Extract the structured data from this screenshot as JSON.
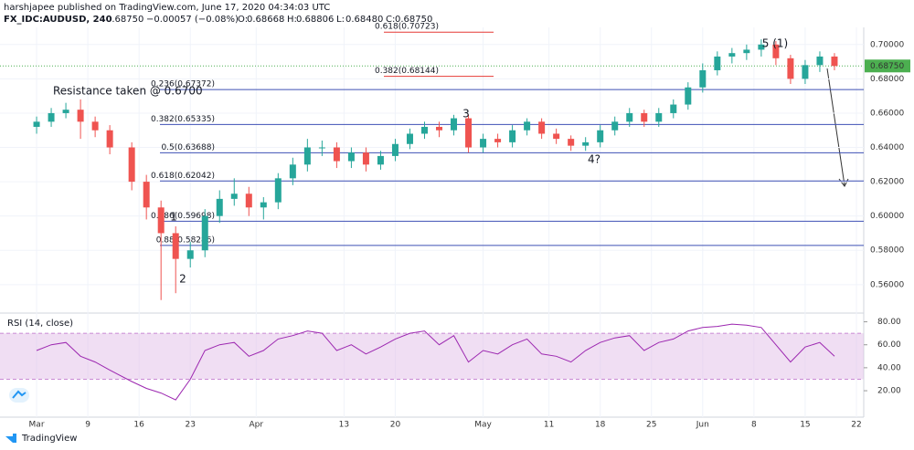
{
  "header": {
    "publisher": "harshjapee published on TradingView.com, June 17, 2020 04:34:03 UTC",
    "symbol": "FX_IDC:AUDUSD, 240",
    "last": "0.68750",
    "change": "−0.00057 (−0.08%)",
    "ohlc": [
      "O:",
      "0.68668",
      "H:",
      "0.68806",
      "L:",
      "0.68480",
      "C:",
      "0.68750"
    ]
  },
  "chart_data": [
    {
      "type": "candlestick",
      "name": "AUDUSD",
      "x": [
        1,
        3,
        5,
        7,
        9,
        11,
        14,
        16,
        18,
        20,
        22,
        24,
        26,
        28,
        30,
        32,
        34,
        36,
        38,
        40,
        42,
        44,
        46,
        48,
        50,
        52,
        54,
        56,
        58,
        60,
        62,
        64,
        66,
        68,
        70,
        72,
        74,
        76,
        78,
        80,
        82,
        84,
        86,
        88,
        90,
        92,
        94,
        96,
        98,
        100,
        102,
        104,
        106,
        108,
        110
      ],
      "open": [
        0.652,
        0.655,
        0.66,
        0.662,
        0.655,
        0.65,
        0.64,
        0.62,
        0.605,
        0.59,
        0.575,
        0.58,
        0.6,
        0.61,
        0.613,
        0.605,
        0.608,
        0.622,
        0.63,
        0.64,
        0.64,
        0.632,
        0.637,
        0.63,
        0.635,
        0.642,
        0.648,
        0.652,
        0.65,
        0.657,
        0.64,
        0.645,
        0.643,
        0.65,
        0.655,
        0.648,
        0.645,
        0.641,
        0.643,
        0.65,
        0.655,
        0.66,
        0.655,
        0.66,
        0.665,
        0.675,
        0.685,
        0.693,
        0.695,
        0.697,
        0.7,
        0.692,
        0.68,
        0.688,
        0.693
      ],
      "high": [
        0.658,
        0.663,
        0.666,
        0.668,
        0.658,
        0.653,
        0.643,
        0.624,
        0.609,
        0.594,
        0.585,
        0.604,
        0.615,
        0.622,
        0.617,
        0.611,
        0.625,
        0.634,
        0.645,
        0.644,
        0.643,
        0.64,
        0.64,
        0.638,
        0.645,
        0.651,
        0.655,
        0.655,
        0.659,
        0.659,
        0.648,
        0.648,
        0.653,
        0.657,
        0.657,
        0.651,
        0.647,
        0.646,
        0.653,
        0.658,
        0.663,
        0.662,
        0.663,
        0.668,
        0.678,
        0.689,
        0.696,
        0.698,
        0.7,
        0.703,
        0.702,
        0.694,
        0.691,
        0.696,
        0.695
      ],
      "low": [
        0.648,
        0.652,
        0.657,
        0.645,
        0.646,
        0.636,
        0.615,
        0.598,
        0.551,
        0.555,
        0.57,
        0.576,
        0.596,
        0.606,
        0.6,
        0.598,
        0.604,
        0.618,
        0.626,
        0.635,
        0.628,
        0.628,
        0.626,
        0.627,
        0.632,
        0.639,
        0.645,
        0.646,
        0.647,
        0.637,
        0.637,
        0.64,
        0.64,
        0.647,
        0.645,
        0.642,
        0.638,
        0.638,
        0.64,
        0.647,
        0.652,
        0.652,
        0.652,
        0.657,
        0.662,
        0.672,
        0.682,
        0.689,
        0.691,
        0.693,
        0.688,
        0.677,
        0.677,
        0.684,
        0.685
      ],
      "close": [
        0.655,
        0.66,
        0.662,
        0.655,
        0.65,
        0.64,
        0.62,
        0.605,
        0.59,
        0.575,
        0.58,
        0.6,
        0.61,
        0.613,
        0.605,
        0.608,
        0.622,
        0.63,
        0.64,
        0.64,
        0.632,
        0.637,
        0.63,
        0.635,
        0.642,
        0.648,
        0.652,
        0.65,
        0.657,
        0.64,
        0.645,
        0.643,
        0.65,
        0.655,
        0.648,
        0.645,
        0.641,
        0.643,
        0.65,
        0.655,
        0.66,
        0.655,
        0.66,
        0.665,
        0.675,
        0.685,
        0.693,
        0.695,
        0.697,
        0.7,
        0.692,
        0.68,
        0.688,
        0.693,
        0.6875
      ],
      "up_color": "#26a69a",
      "down_color": "#ef5350",
      "xlim": [
        -4,
        114
      ],
      "xticks": [
        {
          "value": 1,
          "label": "Mar"
        },
        {
          "value": 8,
          "label": "9"
        },
        {
          "value": 15,
          "label": "16"
        },
        {
          "value": 22,
          "label": "23"
        },
        {
          "value": 31,
          "label": "Apr"
        },
        {
          "value": 43,
          "label": "13"
        },
        {
          "value": 50,
          "label": "20"
        },
        {
          "value": 62,
          "label": "May"
        },
        {
          "value": 71,
          "label": "11"
        },
        {
          "value": 78,
          "label": "18"
        },
        {
          "value": 85,
          "label": "25"
        },
        {
          "value": 92,
          "label": "Jun"
        },
        {
          "value": 99,
          "label": "8"
        },
        {
          "value": 106,
          "label": "15"
        },
        {
          "value": 113,
          "label": "22"
        }
      ],
      "ylim": [
        0.545,
        0.71
      ],
      "yticks": [
        {
          "value": 0.56,
          "label": "0.56000"
        },
        {
          "value": 0.58,
          "label": "0.58000"
        },
        {
          "value": 0.6,
          "label": "0.60000"
        },
        {
          "value": 0.62,
          "label": "0.62000"
        },
        {
          "value": 0.64,
          "label": "0.64000"
        },
        {
          "value": 0.66,
          "label": "0.66000"
        },
        {
          "value": 0.68,
          "label": "0.68000"
        },
        {
          "value": 0.7,
          "label": "0.70000"
        }
      ],
      "last_price": {
        "value": 0.6875,
        "label": "0.68750",
        "color": "#4caf50"
      },
      "fib_levels": [
        {
          "value": 0.70723,
          "label": "0.618(0.70723)",
          "color": "#e53935",
          "short": true
        },
        {
          "value": 0.68144,
          "label": "0.382(0.68144)",
          "color": "#e53935",
          "short": true
        },
        {
          "value": 0.67372,
          "label": "0.236(0.67372)",
          "color": "#3f51b5",
          "short": false
        },
        {
          "value": 0.65335,
          "label": "0.382(0.65335)",
          "color": "#3f51b5",
          "short": false
        },
        {
          "value": 0.63688,
          "label": "0.5(0.63688)",
          "color": "#3f51b5",
          "short": false
        },
        {
          "value": 0.62042,
          "label": "0.618(0.62042)",
          "color": "#3f51b5",
          "short": false
        },
        {
          "value": 0.59698,
          "label": "0.786(0.59698)",
          "color": "#3f51b5",
          "short": false
        },
        {
          "value": 0.58286,
          "label": "0.88(0.58286)",
          "color": "#3f51b5",
          "short": false
        }
      ],
      "annotations": [
        "Resistance taken @ 0.6700",
        "1",
        "2",
        "3",
        "4?",
        "5 (1)"
      ],
      "grid": true
    },
    {
      "type": "line",
      "title": "RSI (14, close)",
      "x": [
        1,
        3,
        5,
        7,
        9,
        11,
        14,
        16,
        18,
        20,
        22,
        24,
        26,
        28,
        30,
        32,
        34,
        36,
        38,
        40,
        42,
        44,
        46,
        48,
        50,
        52,
        54,
        56,
        58,
        60,
        62,
        64,
        66,
        68,
        70,
        72,
        74,
        76,
        78,
        80,
        82,
        84,
        86,
        88,
        90,
        92,
        94,
        96,
        98,
        100,
        102,
        104,
        106,
        108,
        110
      ],
      "series": [
        {
          "name": "RSI",
          "color": "#9c27b0",
          "values": [
            55,
            60,
            62,
            50,
            45,
            38,
            28,
            22,
            18,
            12,
            30,
            55,
            60,
            62,
            50,
            55,
            65,
            68,
            72,
            70,
            55,
            60,
            52,
            58,
            65,
            70,
            72,
            60,
            68,
            45,
            55,
            52,
            60,
            65,
            52,
            50,
            45,
            55,
            62,
            66,
            68,
            55,
            62,
            65,
            72,
            75,
            76,
            78,
            77,
            75,
            60,
            45,
            58,
            62,
            50
          ]
        }
      ],
      "band": [
        30,
        70
      ],
      "band_color": "#e1bee7",
      "xlim": [
        -4,
        114
      ],
      "ylim": [
        -3,
        86
      ],
      "yticks": [
        {
          "value": 20,
          "label": "20.00"
        },
        {
          "value": 40,
          "label": "40.00"
        },
        {
          "value": 60,
          "label": "60.00"
        },
        {
          "value": 80,
          "label": "80.00"
        }
      ]
    }
  ],
  "footer": {
    "brand": "TradingView"
  }
}
